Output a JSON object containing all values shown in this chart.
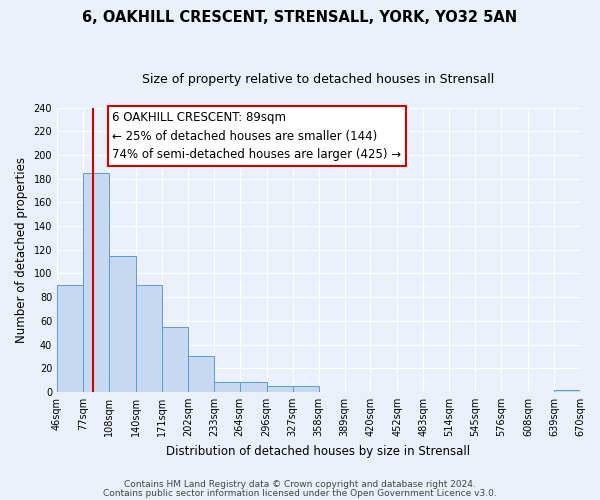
{
  "title": "6, OAKHILL CRESCENT, STRENSALL, YORK, YO32 5AN",
  "subtitle": "Size of property relative to detached houses in Strensall",
  "xlabel": "Distribution of detached houses by size in Strensall",
  "ylabel": "Number of detached properties",
  "bar_left_edges": [
    46,
    77,
    108,
    140,
    171,
    202,
    233,
    264,
    296,
    327,
    358,
    389,
    420,
    452,
    483,
    514,
    545,
    576,
    608,
    639
  ],
  "bar_widths": [
    31,
    31,
    32,
    31,
    31,
    31,
    31,
    32,
    31,
    31,
    31,
    31,
    32,
    31,
    31,
    31,
    31,
    32,
    31,
    31
  ],
  "bar_heights": [
    90,
    185,
    115,
    90,
    55,
    30,
    8,
    8,
    5,
    5,
    0,
    0,
    0,
    0,
    0,
    0,
    0,
    0,
    0,
    2
  ],
  "tick_labels": [
    "46sqm",
    "77sqm",
    "108sqm",
    "140sqm",
    "171sqm",
    "202sqm",
    "233sqm",
    "264sqm",
    "296sqm",
    "327sqm",
    "358sqm",
    "389sqm",
    "420sqm",
    "452sqm",
    "483sqm",
    "514sqm",
    "545sqm",
    "576sqm",
    "608sqm",
    "639sqm",
    "670sqm"
  ],
  "bar_color": "#c6d9f0",
  "bar_edge_color": "#5b9bd5",
  "red_line_x": 89,
  "annotation_title": "6 OAKHILL CRESCENT: 89sqm",
  "annotation_line1": "← 25% of detached houses are smaller (144)",
  "annotation_line2": "74% of semi-detached houses are larger (425) →",
  "annotation_box_facecolor": "#ffffff",
  "annotation_border_color": "#cc0000",
  "ylim": [
    0,
    240
  ],
  "yticks": [
    0,
    20,
    40,
    60,
    80,
    100,
    120,
    140,
    160,
    180,
    200,
    220,
    240
  ],
  "footer_line1": "Contains HM Land Registry data © Crown copyright and database right 2024.",
  "footer_line2": "Contains public sector information licensed under the Open Government Licence v3.0.",
  "background_color": "#eaf0f9",
  "grid_color": "#ffffff",
  "title_fontsize": 10.5,
  "subtitle_fontsize": 9,
  "axis_label_fontsize": 8.5,
  "tick_fontsize": 7,
  "annotation_fontsize": 8.5,
  "footer_fontsize": 6.5
}
